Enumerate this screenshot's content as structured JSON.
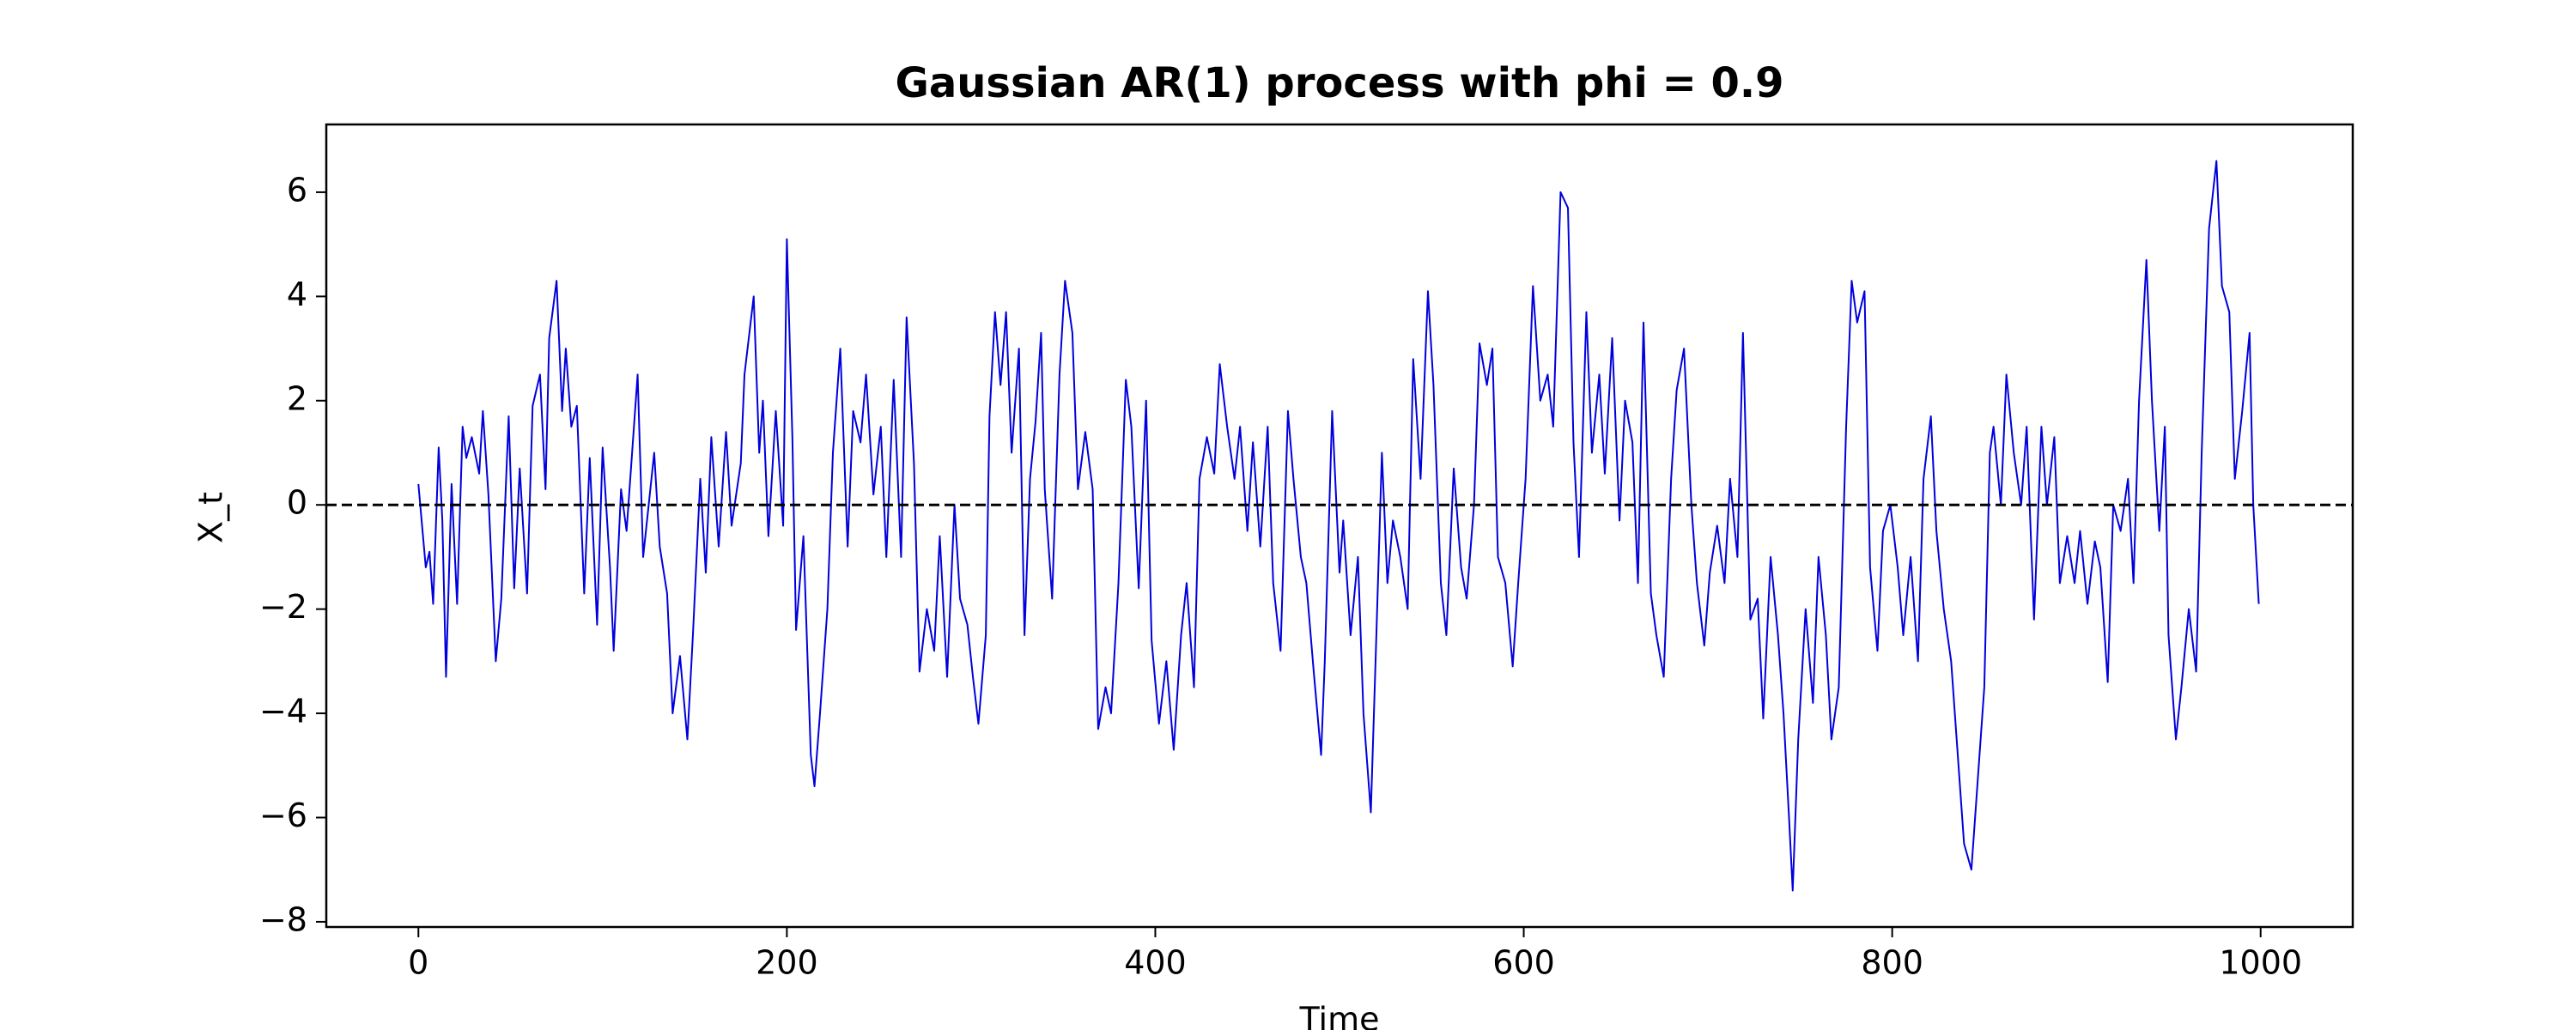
{
  "chart_data": {
    "type": "line",
    "title": "Gaussian AR(1) process with phi = 0.9",
    "xlabel": "Time",
    "ylabel": "X_t",
    "color": "#0000dd",
    "hline": 0,
    "xlim": [
      -50,
      1050
    ],
    "ylim": [
      -8.1,
      7.3
    ],
    "xticks": [
      0,
      200,
      400,
      600,
      800,
      1000
    ],
    "yticks": [
      {
        "value": -8,
        "label": "−8"
      },
      {
        "value": -6,
        "label": "−6"
      },
      {
        "value": -4,
        "label": "−4"
      },
      {
        "value": -2,
        "label": "−2"
      },
      0,
      2,
      4,
      6
    ],
    "x": [
      0,
      4,
      6,
      8,
      11,
      13,
      15,
      18,
      21,
      24,
      26,
      29,
      33,
      35,
      38,
      42,
      45,
      49,
      52,
      55,
      59,
      62,
      66,
      69,
      71,
      75,
      78,
      80,
      83,
      86,
      90,
      93,
      97,
      100,
      104,
      106,
      110,
      113,
      119,
      122,
      128,
      131,
      135,
      138,
      142,
      146,
      149,
      153,
      156,
      159,
      163,
      167,
      170,
      175,
      177,
      182,
      185,
      187,
      190,
      194,
      198,
      200,
      203,
      205,
      209,
      213,
      215,
      218,
      222,
      225,
      229,
      233,
      236,
      240,
      243,
      247,
      251,
      254,
      258,
      262,
      265,
      269,
      272,
      276,
      280,
      283,
      287,
      291,
      294,
      298,
      301,
      304,
      308,
      310,
      313,
      316,
      319,
      322,
      326,
      329,
      332,
      335,
      338,
      340,
      344,
      348,
      351,
      355,
      358,
      362,
      366,
      369,
      373,
      376,
      380,
      384,
      387,
      391,
      395,
      398,
      402,
      406,
      410,
      414,
      417,
      421,
      424,
      428,
      432,
      435,
      439,
      443,
      446,
      450,
      453,
      457,
      461,
      464,
      468,
      472,
      475,
      479,
      482,
      486,
      490,
      492,
      496,
      500,
      502,
      506,
      510,
      513,
      517,
      520,
      523,
      526,
      529,
      533,
      537,
      540,
      544,
      548,
      551,
      555,
      558,
      562,
      566,
      569,
      573,
      576,
      580,
      583,
      586,
      590,
      594,
      597,
      601,
      605,
      609,
      613,
      616,
      620,
      624,
      627,
      630,
      634,
      637,
      641,
      644,
      648,
      652,
      655,
      659,
      662,
      665,
      669,
      672,
      676,
      680,
      683,
      687,
      691,
      694,
      698,
      701,
      705,
      709,
      712,
      716,
      719,
      723,
      727,
      730,
      734,
      738,
      741,
      744,
      746,
      749,
      753,
      757,
      760,
      764,
      767,
      771,
      775,
      778,
      781,
      785,
      788,
      792,
      795,
      799,
      803,
      806,
      810,
      814,
      817,
      821,
      824,
      828,
      832,
      835,
      839,
      843,
      846,
      850,
      853,
      855,
      859,
      862,
      866,
      870,
      873,
      877,
      881,
      884,
      888,
      891,
      895,
      899,
      902,
      906,
      910,
      913,
      917,
      920,
      924,
      928,
      931,
      934,
      938,
      941,
      945,
      948,
      950,
      954,
      957,
      961,
      965,
      968,
      972,
      976,
      979,
      983,
      986,
      990,
      994,
      996,
      999
    ],
    "values": [
      0.4,
      -1.2,
      -0.9,
      -1.9,
      1.1,
      -0.3,
      -3.3,
      0.4,
      -1.9,
      1.5,
      0.9,
      1.3,
      0.6,
      1.8,
      0.2,
      -3.0,
      -1.8,
      1.7,
      -1.6,
      0.7,
      -1.7,
      1.9,
      2.5,
      0.3,
      3.2,
      4.3,
      1.8,
      3.0,
      1.5,
      1.9,
      -1.7,
      0.9,
      -2.3,
      1.1,
      -1.2,
      -2.8,
      0.3,
      -0.5,
      2.5,
      -1.0,
      1.0,
      -0.8,
      -1.7,
      -4.0,
      -2.9,
      -4.5,
      -2.5,
      0.5,
      -1.3,
      1.3,
      -0.8,
      1.4,
      -0.4,
      0.8,
      2.5,
      4.0,
      1.0,
      2.0,
      -0.6,
      1.8,
      -0.4,
      5.1,
      1.3,
      -2.4,
      -0.6,
      -4.8,
      -5.4,
      -4.0,
      -2.0,
      1.0,
      3.0,
      -0.8,
      1.8,
      1.2,
      2.5,
      0.2,
      1.5,
      -1.0,
      2.4,
      -1.0,
      3.6,
      0.8,
      -3.2,
      -2.0,
      -2.8,
      -0.6,
      -3.3,
      0.0,
      -1.8,
      -2.3,
      -3.3,
      -4.2,
      -2.5,
      1.7,
      3.7,
      2.3,
      3.7,
      1.0,
      3.0,
      -2.5,
      0.5,
      1.6,
      3.3,
      0.3,
      -1.8,
      2.5,
      4.3,
      3.3,
      0.3,
      1.4,
      0.3,
      -4.3,
      -3.5,
      -4.0,
      -1.5,
      2.4,
      1.5,
      -1.6,
      2.0,
      -2.6,
      -4.2,
      -3.0,
      -4.7,
      -2.5,
      -1.5,
      -3.5,
      0.5,
      1.3,
      0.6,
      2.7,
      1.5,
      0.5,
      1.5,
      -0.5,
      1.2,
      -0.8,
      1.5,
      -1.5,
      -2.8,
      1.8,
      0.5,
      -1.0,
      -1.5,
      -3.2,
      -4.8,
      -3.0,
      1.8,
      -1.3,
      -0.3,
      -2.5,
      -1.0,
      -4.0,
      -5.9,
      -2.5,
      1.0,
      -1.5,
      -0.3,
      -1.0,
      -2.0,
      2.8,
      0.5,
      4.1,
      2.3,
      -1.5,
      -2.5,
      0.7,
      -1.2,
      -1.8,
      0.0,
      3.1,
      2.3,
      3.0,
      -1.0,
      -1.5,
      -3.1,
      -1.5,
      0.5,
      4.2,
      2.0,
      2.5,
      1.5,
      6.0,
      5.7,
      1.2,
      -1.0,
      3.7,
      1.0,
      2.5,
      0.6,
      3.2,
      -0.3,
      2.0,
      1.2,
      -1.5,
      3.5,
      -1.7,
      -2.5,
      -3.3,
      0.5,
      2.2,
      3.0,
      0.0,
      -1.5,
      -2.7,
      -1.3,
      -0.4,
      -1.5,
      0.5,
      -1.0,
      3.3,
      -2.2,
      -1.8,
      -4.1,
      -1.0,
      -2.5,
      -4.0,
      -6.0,
      -7.4,
      -4.5,
      -2.0,
      -3.8,
      -1.0,
      -2.5,
      -4.5,
      -3.5,
      1.5,
      4.3,
      3.5,
      4.1,
      -1.2,
      -2.8,
      -0.5,
      0.0,
      -1.2,
      -2.5,
      -1.0,
      -3.0,
      0.5,
      1.7,
      -0.5,
      -2.0,
      -3.0,
      -4.5,
      -6.5,
      -7.0,
      -5.5,
      -3.5,
      1.0,
      1.5,
      0.0,
      2.5,
      1.0,
      0.0,
      1.5,
      -2.2,
      1.5,
      0.0,
      1.3,
      -1.5,
      -0.6,
      -1.5,
      -0.5,
      -1.9,
      -0.7,
      -1.2,
      -3.4,
      0.0,
      -0.5,
      0.5,
      -1.5,
      2.0,
      4.7,
      2.0,
      -0.5,
      1.5,
      -2.5,
      -4.5,
      -3.5,
      -2.0,
      -3.2,
      1.0,
      5.3,
      6.6,
      4.2,
      3.7,
      0.5,
      1.8,
      3.3,
      0.0,
      -1.9
    ]
  }
}
